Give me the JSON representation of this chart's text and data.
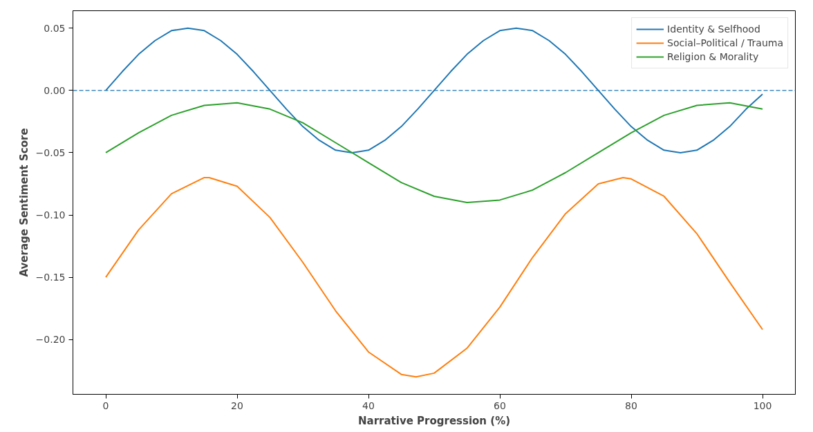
{
  "chart_data": {
    "type": "line",
    "xlabel": "Narrative Progression (%)",
    "ylabel": "Average Sentiment Score",
    "xlim": [
      -5,
      105
    ],
    "ylim": [
      -0.244,
      0.064
    ],
    "xticks": [
      0,
      20,
      40,
      60,
      80,
      100
    ],
    "yticks": [
      {
        "value": 0.05,
        "label": "0.05"
      },
      {
        "value": 0,
        "label": "0.00"
      },
      {
        "value": -0.05,
        "label": "−0.05"
      },
      {
        "value": -0.1,
        "label": "−0.10"
      },
      {
        "value": -0.15,
        "label": "−0.15"
      },
      {
        "value": -0.2,
        "label": "−0.20"
      }
    ],
    "grid": false,
    "legend": "top right",
    "line_style": "solid",
    "marker": "none",
    "ref_lines": [
      {
        "axis": "y",
        "value": 0,
        "label": null,
        "color": "#1f77b4",
        "line_style": "dashed"
      }
    ],
    "series": [
      {
        "name": "Identity & Selfhood",
        "color": "#1f77b4",
        "x": [
          0,
          2.5,
          5,
          7.5,
          10,
          12.5,
          15,
          17.5,
          20,
          22.5,
          25,
          27.5,
          30,
          32.5,
          35,
          37.5,
          40,
          42.5,
          45,
          47.5,
          50,
          52.5,
          55,
          57.5,
          60,
          62.5,
          65,
          67.5,
          70,
          72.5,
          75,
          77.5,
          80,
          82.5,
          85,
          87.5,
          90,
          92.5,
          95,
          97.5,
          100
        ],
        "values": [
          0,
          0.015,
          0.029,
          0.04,
          0.048,
          0.05,
          0.048,
          0.04,
          0.029,
          0.015,
          0,
          -0.015,
          -0.029,
          -0.04,
          -0.048,
          -0.05,
          -0.048,
          -0.04,
          -0.029,
          -0.015,
          0,
          0.015,
          0.029,
          0.04,
          0.048,
          0.05,
          0.048,
          0.04,
          0.029,
          0.015,
          0,
          -0.015,
          -0.029,
          -0.04,
          -0.048,
          -0.05,
          -0.048,
          -0.04,
          -0.029,
          -0.015,
          -0.003
        ]
      },
      {
        "name": "Social–Political / Trauma",
        "color": "#ff7f0e",
        "x": [
          0,
          5,
          10,
          15,
          15.75,
          20,
          25,
          30,
          35,
          40,
          45,
          47.25,
          50,
          55,
          60,
          65,
          70,
          75,
          78.75,
          80,
          85,
          90,
          95,
          100
        ],
        "values": [
          -0.15,
          -0.112,
          -0.083,
          -0.07,
          -0.07,
          -0.077,
          -0.102,
          -0.138,
          -0.177,
          -0.21,
          -0.228,
          -0.23,
          -0.227,
          -0.207,
          -0.174,
          -0.134,
          -0.099,
          -0.075,
          -0.07,
          -0.071,
          -0.085,
          -0.115,
          -0.154,
          -0.192
        ]
      },
      {
        "name": "Religion & Morality",
        "color": "#2ca02c",
        "x": [
          0,
          5,
          10,
          15,
          20,
          25,
          30,
          35,
          40,
          45,
          50,
          55,
          60,
          65,
          70,
          75,
          80,
          85,
          90,
          95,
          100
        ],
        "values": [
          -0.05,
          -0.034,
          -0.02,
          -0.012,
          -0.01,
          -0.015,
          -0.026,
          -0.042,
          -0.058,
          -0.074,
          -0.085,
          -0.09,
          -0.088,
          -0.08,
          -0.066,
          -0.05,
          -0.034,
          -0.02,
          -0.012,
          -0.01,
          -0.015
        ]
      }
    ]
  }
}
